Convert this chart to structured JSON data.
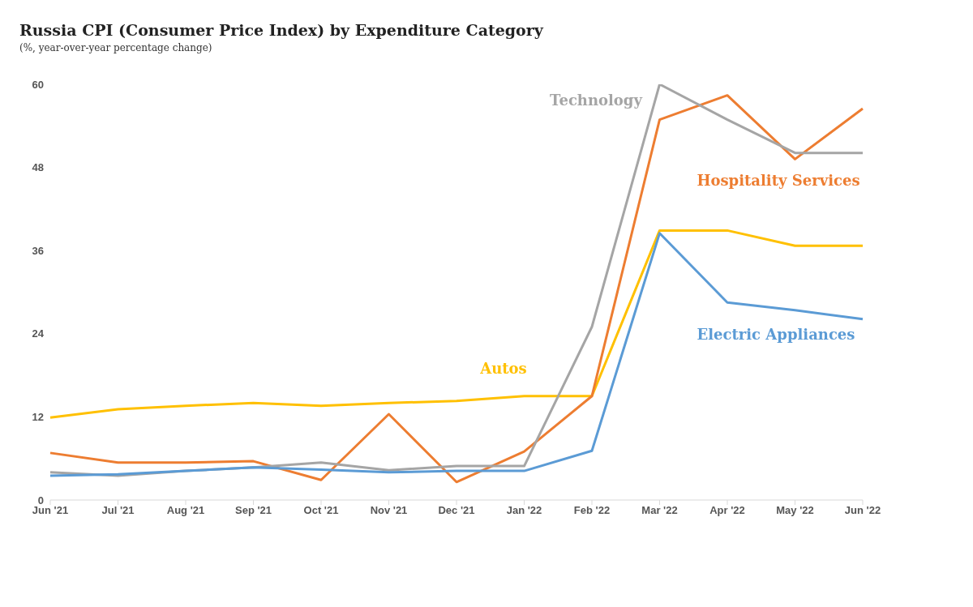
{
  "chart_data": {
    "type": "line",
    "title": "Russia CPI (Consumer Price Index) by Expenditure Category",
    "subtitle": "(%, year-over-year percentage change)",
    "categories": [
      "Jun '21",
      "Jul '21",
      "Aug '21",
      "Sep '21",
      "Oct '21",
      "Nov '21",
      "Dec '21",
      "Jan '22",
      "Feb '22",
      "Mar '22",
      "Apr '22",
      "May '22",
      "Jun '22"
    ],
    "series": [
      {
        "name": "Autos",
        "color": "#ffc000",
        "values": [
          11.9,
          13.1,
          13.6,
          14.0,
          13.6,
          14.0,
          14.3,
          15.0,
          15.0,
          38.9,
          38.9,
          36.7,
          36.7
        ]
      },
      {
        "name": "Hospitality Services",
        "color": "#ed7d31",
        "values": [
          6.8,
          5.4,
          5.4,
          5.6,
          2.9,
          12.4,
          2.6,
          7.0,
          15.0,
          54.9,
          58.4,
          49.2,
          56.5
        ]
      },
      {
        "name": "Technology",
        "color": "#a5a5a5",
        "values": [
          4.0,
          3.5,
          4.2,
          4.7,
          5.4,
          4.3,
          4.9,
          4.9,
          25.0,
          60.0,
          54.9,
          50.1,
          50.1
        ]
      },
      {
        "name": "Electric Appliances",
        "color": "#5b9bd5",
        "values": [
          3.5,
          3.7,
          4.2,
          4.7,
          4.4,
          4.0,
          4.2,
          4.2,
          7.1,
          38.5,
          28.5,
          27.4,
          26.1
        ]
      }
    ],
    "ylim": [
      0,
      60
    ],
    "yticks": [
      0,
      12,
      24,
      36,
      48,
      60
    ],
    "grid": false,
    "marker": "none",
    "line_style": "solid"
  }
}
